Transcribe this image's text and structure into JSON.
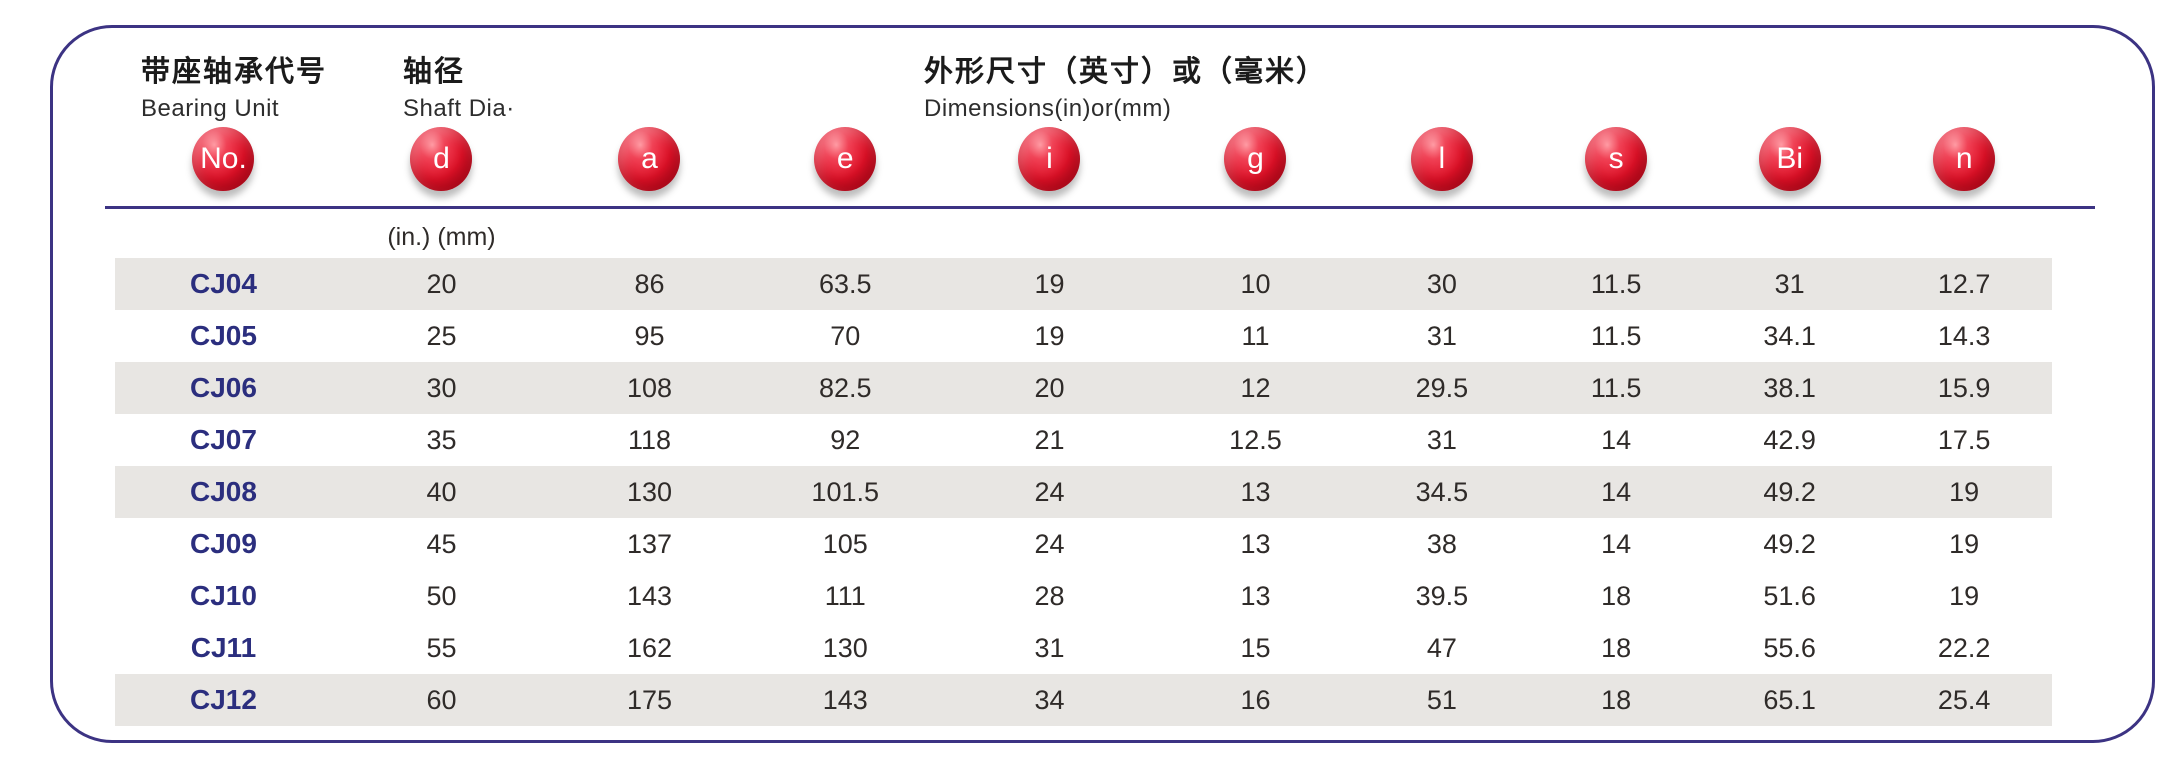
{
  "header": {
    "groups": [
      {
        "zh": "带座轴承代号",
        "en": "Bearing Unit"
      },
      {
        "zh": "轴径",
        "en": "Shaft Dia·"
      },
      {
        "zh": "外形尺寸（英寸）或（毫米）",
        "en": "Dimensions(in)or(mm)"
      }
    ]
  },
  "table": {
    "columns": [
      "No.",
      "d",
      "a",
      "e",
      "i",
      "g",
      "l",
      "s",
      "Bi",
      "n"
    ],
    "unit_note": "(in.) (mm)",
    "rows": [
      {
        "no": "CJ04",
        "values": [
          "20",
          "86",
          "63.5",
          "19",
          "10",
          "30",
          "11.5",
          "31",
          "12.7"
        ],
        "shaded": true
      },
      {
        "no": "CJ05",
        "values": [
          "25",
          "95",
          "70",
          "19",
          "11",
          "31",
          "11.5",
          "34.1",
          "14.3"
        ],
        "shaded": false
      },
      {
        "no": "CJ06",
        "values": [
          "30",
          "108",
          "82.5",
          "20",
          "12",
          "29.5",
          "11.5",
          "38.1",
          "15.9"
        ],
        "shaded": true
      },
      {
        "no": "CJ07",
        "values": [
          "35",
          "118",
          "92",
          "21",
          "12.5",
          "31",
          "14",
          "42.9",
          "17.5"
        ],
        "shaded": false
      },
      {
        "no": "CJ08",
        "values": [
          "40",
          "130",
          "101.5",
          "24",
          "13",
          "34.5",
          "14",
          "49.2",
          "19"
        ],
        "shaded": true
      },
      {
        "no": "CJ09",
        "values": [
          "45",
          "137",
          "105",
          "24",
          "13",
          "38",
          "14",
          "49.2",
          "19"
        ],
        "shaded": false
      },
      {
        "no": "CJ10",
        "values": [
          "50",
          "143",
          "111",
          "28",
          "13",
          "39.5",
          "18",
          "51.6",
          "19"
        ],
        "shaded": false
      },
      {
        "no": "CJ11",
        "values": [
          "55",
          "162",
          "130",
          "31",
          "15",
          "47",
          "18",
          "55.6",
          "22.2"
        ],
        "shaded": false
      },
      {
        "no": "CJ12",
        "values": [
          "60",
          "175",
          "143",
          "34",
          "16",
          "51",
          "18",
          "65.1",
          "25.4"
        ],
        "shaded": true
      }
    ]
  },
  "colors": {
    "badge_red": "#e01229",
    "border_indigo": "#3c3383",
    "row_shade": "#e8e6e3",
    "model_navy": "#2b2e7e"
  }
}
